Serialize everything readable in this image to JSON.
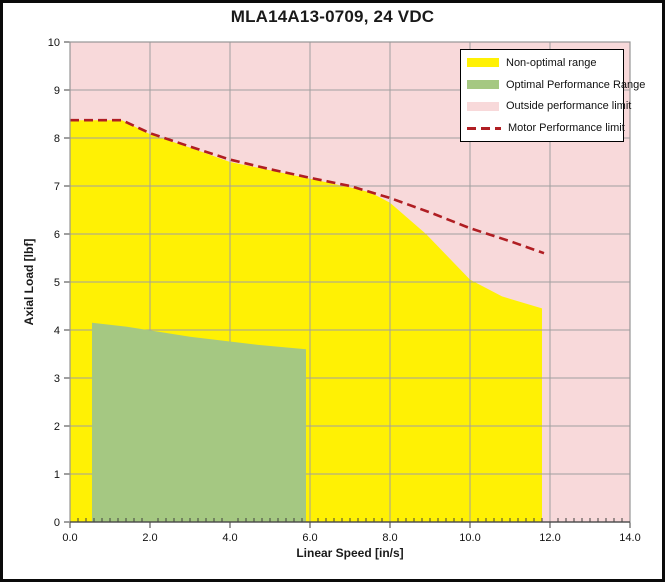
{
  "chart_data": {
    "type": "area",
    "title": "MLA14A13-0709, 24 VDC",
    "xlabel": "Linear Speed [in/s]",
    "ylabel": "Axial Load [lbf]",
    "xlim": [
      0,
      14
    ],
    "ylim": [
      0,
      10
    ],
    "grid": true,
    "x_major_ticks": [
      0,
      2,
      4,
      6,
      8,
      10,
      12,
      14
    ],
    "x_tick_labels": [
      "0.0",
      "2.0",
      "4.0",
      "6.0",
      "8.0",
      "10.0",
      "12.0",
      "14.0"
    ],
    "x_minor_tick_step": 0.2,
    "y_ticks": [
      0,
      1,
      2,
      3,
      4,
      5,
      6,
      7,
      8,
      9,
      10
    ],
    "y_tick_labels": [
      "0",
      "1",
      "2",
      "3",
      "4",
      "5",
      "6",
      "7",
      "8",
      "9",
      "10"
    ],
    "colors": {
      "non_optimal": "#FFF104",
      "optimal": "#A5C882",
      "outside": "#F8D9DA",
      "motor_limit": "#B01E23",
      "gridline": "#A0A0A0",
      "axis": "#3F3F3F",
      "plot_border": "#969696"
    },
    "legend": {
      "position": "top-right",
      "items": [
        {
          "label": "Non-optimal range",
          "swatch": "area",
          "color": "#FFF104"
        },
        {
          "label": "Optimal Performance Range",
          "swatch": "area",
          "color": "#A5C882"
        },
        {
          "label": "Outside performance limit",
          "swatch": "area",
          "color": "#F8D9DA"
        },
        {
          "label": "Motor Performance limit",
          "swatch": "dashed-line",
          "color": "#B01E23"
        }
      ]
    },
    "series": [
      {
        "name": "Outside performance limit",
        "type": "background",
        "color": "#F8D9DA"
      },
      {
        "name": "Non-optimal range",
        "type": "area",
        "color": "#FFF104",
        "points": [
          [
            0,
            0
          ],
          [
            0,
            8.37
          ],
          [
            1.3,
            8.37
          ],
          [
            2,
            8.08
          ],
          [
            3,
            7.8
          ],
          [
            4,
            7.5
          ],
          [
            5,
            7.33
          ],
          [
            6,
            7.15
          ],
          [
            7,
            6.97
          ],
          [
            7.5,
            6.87
          ],
          [
            8,
            6.65
          ],
          [
            8.9,
            6.0
          ],
          [
            10,
            5.05
          ],
          [
            10.8,
            4.7
          ],
          [
            11.4,
            4.55
          ],
          [
            11.8,
            4.45
          ],
          [
            11.8,
            0
          ]
        ]
      },
      {
        "name": "Optimal Performance Range",
        "type": "area",
        "color": "#A5C882",
        "points": [
          [
            0.55,
            0
          ],
          [
            0.55,
            4.15
          ],
          [
            1.4,
            4.07
          ],
          [
            3,
            3.86
          ],
          [
            4.7,
            3.69
          ],
          [
            5.9,
            3.6
          ],
          [
            5.9,
            0
          ]
        ]
      },
      {
        "name": "Motor Performance limit",
        "type": "dashed_line",
        "color": "#B01E23",
        "points": [
          [
            0,
            8.37
          ],
          [
            1.3,
            8.37
          ],
          [
            2,
            8.1
          ],
          [
            3,
            7.82
          ],
          [
            4,
            7.55
          ],
          [
            5,
            7.35
          ],
          [
            6,
            7.17
          ],
          [
            7,
            7.0
          ],
          [
            8,
            6.75
          ],
          [
            9,
            6.45
          ],
          [
            10,
            6.12
          ],
          [
            11,
            5.85
          ],
          [
            11.85,
            5.6
          ]
        ]
      }
    ]
  }
}
